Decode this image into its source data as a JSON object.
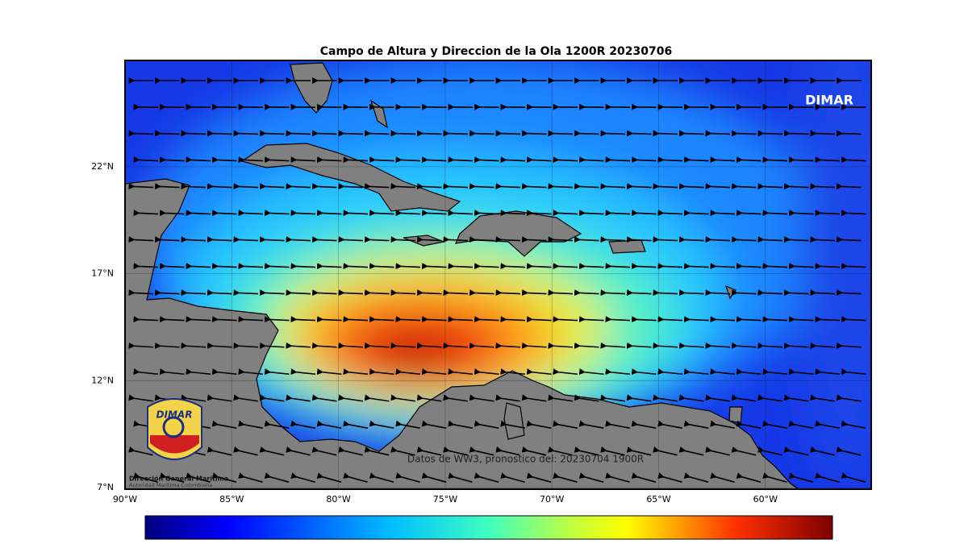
{
  "map": {
    "title": "Campo de Altura y Direccion de la Ola 1200R 20230706",
    "watermark": "DIMAR",
    "source_note": "Datos de WW3, pronostico del: 20230704 1900R",
    "lon_labels": [
      "90°W",
      "85°W",
      "80°W",
      "75°W",
      "70°W",
      "65°W",
      "60°W"
    ],
    "lat_labels": [
      "7°N",
      "12°N",
      "17°N",
      "22°N"
    ],
    "logo": {
      "mark": "DIMAR",
      "name": "Dirección General Marítima",
      "subtitle": "Autoridad Marítima Colombiana"
    }
  }
}
